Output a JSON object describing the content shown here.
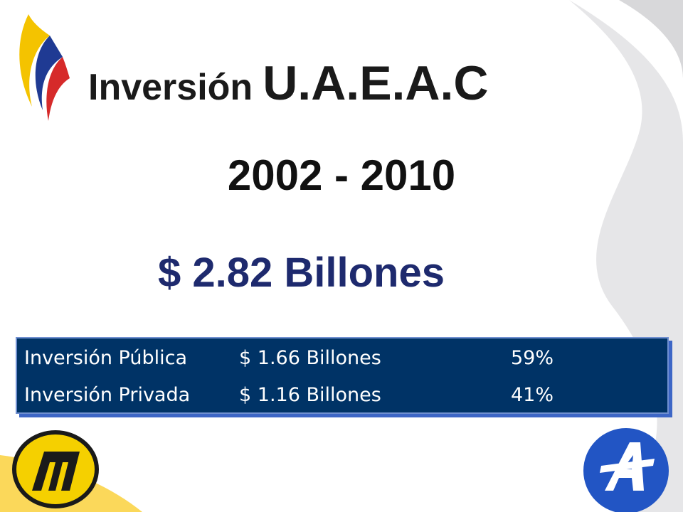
{
  "header": {
    "title_word": "Inversión",
    "title_acronym": "U.A.E.A.C",
    "period": "2002 - 2010",
    "total": "$ 2.82 Billones"
  },
  "table": {
    "rows": [
      [
        "Inversión Pública",
        "$ 1.66 Billones",
        "59%"
      ],
      [
        "Inversión Privada",
        "$ 1.16 Billones",
        "41%"
      ]
    ]
  }
}
